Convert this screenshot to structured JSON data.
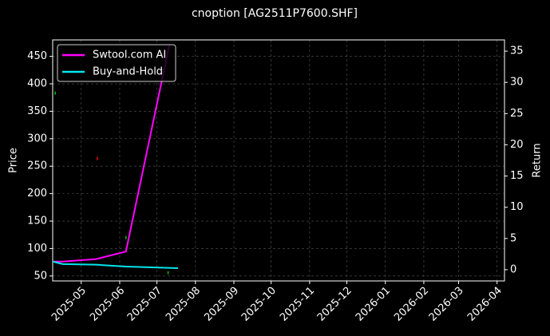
{
  "chart_data": {
    "type": "line",
    "title": "cnoption [AG2511P7600.SHF]",
    "ylabel": "Price",
    "y2label": "Return",
    "xlim": [
      "2025-04-08",
      "2026-04-07"
    ],
    "xticks": [
      "2025-05",
      "2025-06",
      "2025-07",
      "2025-08",
      "2025-09",
      "2025-10",
      "2025-11",
      "2025-12",
      "2026-01",
      "2026-02",
      "2026-03",
      "2026-04"
    ],
    "ylim": [
      41,
      480
    ],
    "yticks": [
      50,
      100,
      150,
      200,
      250,
      300,
      350,
      400,
      450
    ],
    "y2lim": [
      -1.8,
      36.8
    ],
    "y2ticks": [
      0,
      5,
      10,
      15,
      20,
      25,
      30,
      35
    ],
    "grid": true,
    "legend": "upper left",
    "series": [
      {
        "name": "Swtool.com AI",
        "color": "#ff00ff",
        "axis": "y2",
        "x": [
          "2025-04-08",
          "2025-04-16",
          "2025-05-13",
          "2025-06-06",
          "2025-07-11"
        ],
        "values": [
          1.3,
          1.3,
          1.7,
          2.9,
          36
        ]
      },
      {
        "name": "Buy-and-Hold",
        "color": "#00e5ee",
        "axis": "y2",
        "x": [
          "2025-04-08",
          "2025-04-16",
          "2025-05-13",
          "2025-06-06",
          "2025-07-18"
        ],
        "values": [
          1.3,
          0.9,
          0.8,
          0.5,
          0.25
        ]
      }
    ],
    "price_marks": {
      "x": [
        "2025-04-10",
        "2025-05-14",
        "2025-06-06",
        "2025-07-10"
      ],
      "values": [
        383,
        264,
        120,
        56
      ],
      "colors": [
        "#00c000",
        "#ff0000",
        "#00c000",
        "#00c000"
      ]
    }
  }
}
